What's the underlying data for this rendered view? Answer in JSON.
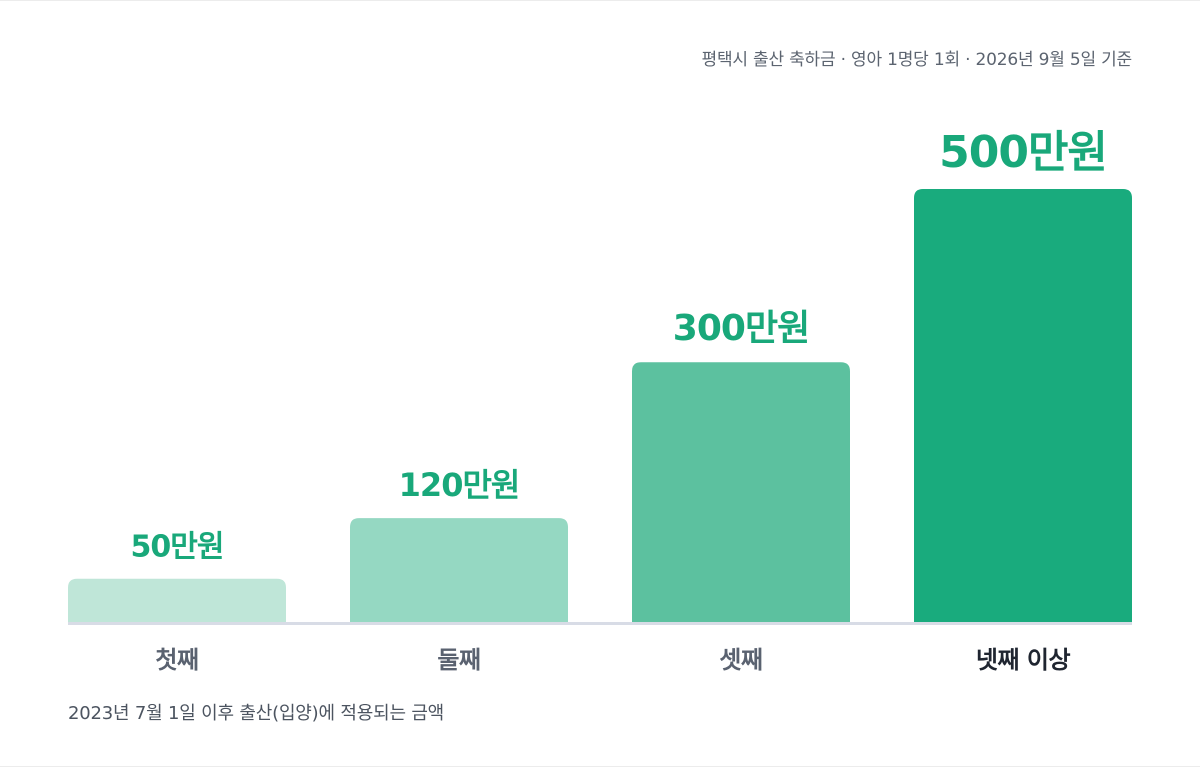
{
  "chart_data": {
    "type": "bar",
    "title": "평택시 출산 축하금 · 영아 1명당 1회 · 2026년 9월 5일 기준",
    "note": "2023년 7월 1일 이후 출산(입양)에 적용되는 금액",
    "categories": [
      "첫째",
      "둘째",
      "셋째",
      "넷째 이상"
    ],
    "values": [
      50,
      120,
      300,
      500
    ],
    "value_labels": [
      "50만원",
      "120만원",
      "300만원",
      "500만원"
    ],
    "unit": "만원",
    "ylim": [
      0,
      500
    ],
    "grid": false,
    "legend": "none",
    "colors": {
      "bars": [
        "#bfe6d8",
        "#95d8c2",
        "#5cc19f",
        "#19ab7d"
      ],
      "value_text": "#19a87a",
      "axis_line": "#d8dce6",
      "category_text": [
        "#5a6270",
        "#5a6270",
        "#5a6270",
        "#1f2530"
      ],
      "title_text": "#5c6470",
      "note_text": "#4c5460"
    }
  }
}
